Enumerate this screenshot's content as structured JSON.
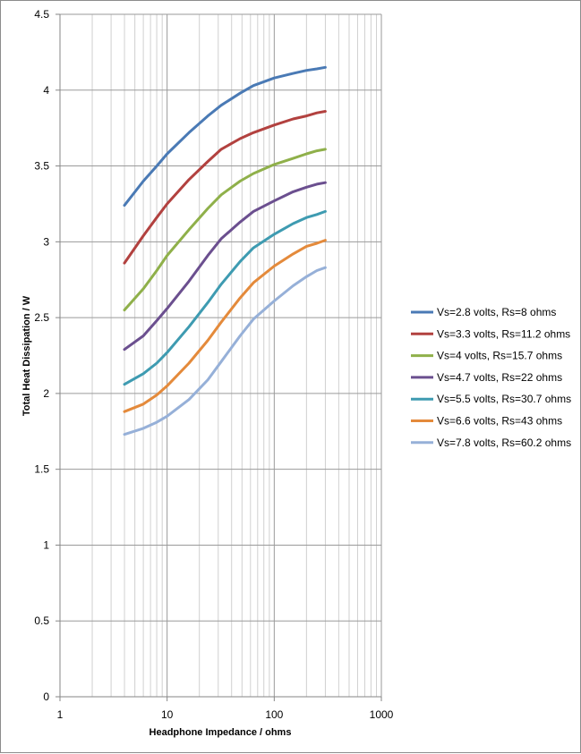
{
  "chart_data": {
    "type": "line",
    "title": "",
    "xlabel": "Headphone Impedance  / ohms",
    "ylabel": "Total Heat Dissipation  / W",
    "xscale": "log",
    "xlim": [
      1,
      1000
    ],
    "ylim": [
      0,
      4.5
    ],
    "x_ticks": [
      "1",
      "10",
      "100",
      "1000"
    ],
    "y_ticks": [
      "0",
      "0.5",
      "1",
      "1.5",
      "2",
      "2.5",
      "3",
      "3.5",
      "4",
      "4.5"
    ],
    "grid": true,
    "legend_position": "right",
    "x": [
      4,
      6,
      8,
      10,
      16,
      24,
      32,
      48,
      64,
      100,
      150,
      200,
      250,
      300
    ],
    "series": [
      {
        "name": "Vs=2.8 volts, Rs=8 ohms",
        "color": "#4a7ab5",
        "values": [
          3.24,
          3.4,
          3.5,
          3.58,
          3.72,
          3.83,
          3.9,
          3.98,
          4.03,
          4.08,
          4.11,
          4.13,
          4.14,
          4.15
        ]
      },
      {
        "name": "Vs=3.3 volts, Rs=11.2 ohms",
        "color": "#b2413f",
        "values": [
          2.86,
          3.04,
          3.16,
          3.25,
          3.41,
          3.53,
          3.61,
          3.68,
          3.72,
          3.77,
          3.81,
          3.83,
          3.85,
          3.86
        ]
      },
      {
        "name": "Vs=4 volts, Rs=15.7 ohms",
        "color": "#8fb04a",
        "values": [
          2.55,
          2.69,
          2.81,
          2.91,
          3.08,
          3.22,
          3.31,
          3.4,
          3.45,
          3.51,
          3.55,
          3.58,
          3.6,
          3.61
        ]
      },
      {
        "name": "Vs=4.7 volts, Rs=22 ohms",
        "color": "#6b4f8f",
        "values": [
          2.29,
          2.38,
          2.48,
          2.56,
          2.74,
          2.91,
          3.02,
          3.13,
          3.2,
          3.27,
          3.33,
          3.36,
          3.38,
          3.39
        ]
      },
      {
        "name": "Vs=5.5 volts, Rs=30.7 ohms",
        "color": "#3e9bb1",
        "values": [
          2.06,
          2.13,
          2.2,
          2.27,
          2.44,
          2.6,
          2.72,
          2.87,
          2.96,
          3.05,
          3.12,
          3.16,
          3.18,
          3.2
        ]
      },
      {
        "name": "Vs=6.6 volts, Rs=43 ohms",
        "color": "#e48a3b",
        "values": [
          1.88,
          1.93,
          1.99,
          2.05,
          2.2,
          2.35,
          2.47,
          2.63,
          2.73,
          2.84,
          2.92,
          2.97,
          2.99,
          3.01
        ]
      },
      {
        "name": "Vs=7.8 volts, Rs=60.2 ohms",
        "color": "#96b0d8",
        "values": [
          1.73,
          1.77,
          1.81,
          1.85,
          1.96,
          2.09,
          2.21,
          2.38,
          2.49,
          2.61,
          2.71,
          2.77,
          2.81,
          2.83
        ]
      }
    ]
  }
}
